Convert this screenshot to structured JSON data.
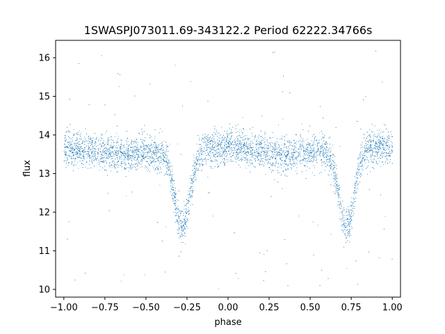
{
  "chart_data": {
    "type": "scatter",
    "title": "1SWASPJ073011.69-343122.2 Period 62222.34766s",
    "xlabel": "phase",
    "ylabel": "flux",
    "xlim": [
      -1.05,
      1.05
    ],
    "ylim": [
      9.8,
      16.45
    ],
    "xticks": [
      -1.0,
      -0.75,
      -0.5,
      -0.25,
      0.0,
      0.25,
      0.5,
      0.75,
      1.0
    ],
    "xtick_labels": [
      "−1.00",
      "−0.75",
      "−0.50",
      "−0.25",
      "0.00",
      "0.25",
      "0.50",
      "0.75",
      "1.00"
    ],
    "yticks": [
      10,
      11,
      12,
      13,
      14,
      15,
      16
    ],
    "ytick_labels": [
      "10",
      "11",
      "12",
      "13",
      "14",
      "15",
      "16"
    ],
    "grid": false,
    "legend": "none",
    "marker_color": "#1f77b4",
    "light_curve": {
      "baseline_flux": 13.6,
      "scatter_sigma": 0.22,
      "eclipses": [
        {
          "phase": -0.28,
          "min_flux": 11.6,
          "half_width": 0.07
        },
        {
          "phase": 0.72,
          "min_flux": 11.6,
          "half_width": 0.07
        }
      ],
      "outliers_range": [
        10.0,
        16.2
      ]
    },
    "series": [
      {
        "name": "",
        "points": [
          [
            -1.0,
            13.55
          ],
          [
            -0.95,
            13.7
          ],
          [
            -0.9,
            13.6
          ],
          [
            -0.85,
            13.65
          ],
          [
            -0.8,
            13.7
          ],
          [
            -0.75,
            13.72
          ],
          [
            -0.7,
            13.7
          ],
          [
            -0.65,
            13.65
          ],
          [
            -0.6,
            13.6
          ],
          [
            -0.55,
            13.55
          ],
          [
            -0.5,
            13.5
          ],
          [
            -0.45,
            13.4
          ],
          [
            -0.4,
            13.05
          ],
          [
            -0.35,
            12.4
          ],
          [
            -0.3,
            11.75
          ],
          [
            -0.28,
            11.6
          ],
          [
            -0.25,
            11.9
          ],
          [
            -0.22,
            12.5
          ],
          [
            -0.18,
            13.1
          ],
          [
            -0.15,
            13.35
          ],
          [
            -0.1,
            13.5
          ],
          [
            0.0,
            13.6
          ],
          [
            0.1,
            13.65
          ],
          [
            0.2,
            13.7
          ],
          [
            0.3,
            13.68
          ],
          [
            0.4,
            13.6
          ],
          [
            0.5,
            13.5
          ],
          [
            0.55,
            13.4
          ],
          [
            0.6,
            13.0
          ],
          [
            0.65,
            12.4
          ],
          [
            0.7,
            11.75
          ],
          [
            0.72,
            11.6
          ],
          [
            0.75,
            11.9
          ],
          [
            0.78,
            12.5
          ],
          [
            0.82,
            13.1
          ],
          [
            0.85,
            13.35
          ],
          [
            0.9,
            13.5
          ],
          [
            0.95,
            13.55
          ],
          [
            1.0,
            13.5
          ]
        ]
      }
    ]
  }
}
